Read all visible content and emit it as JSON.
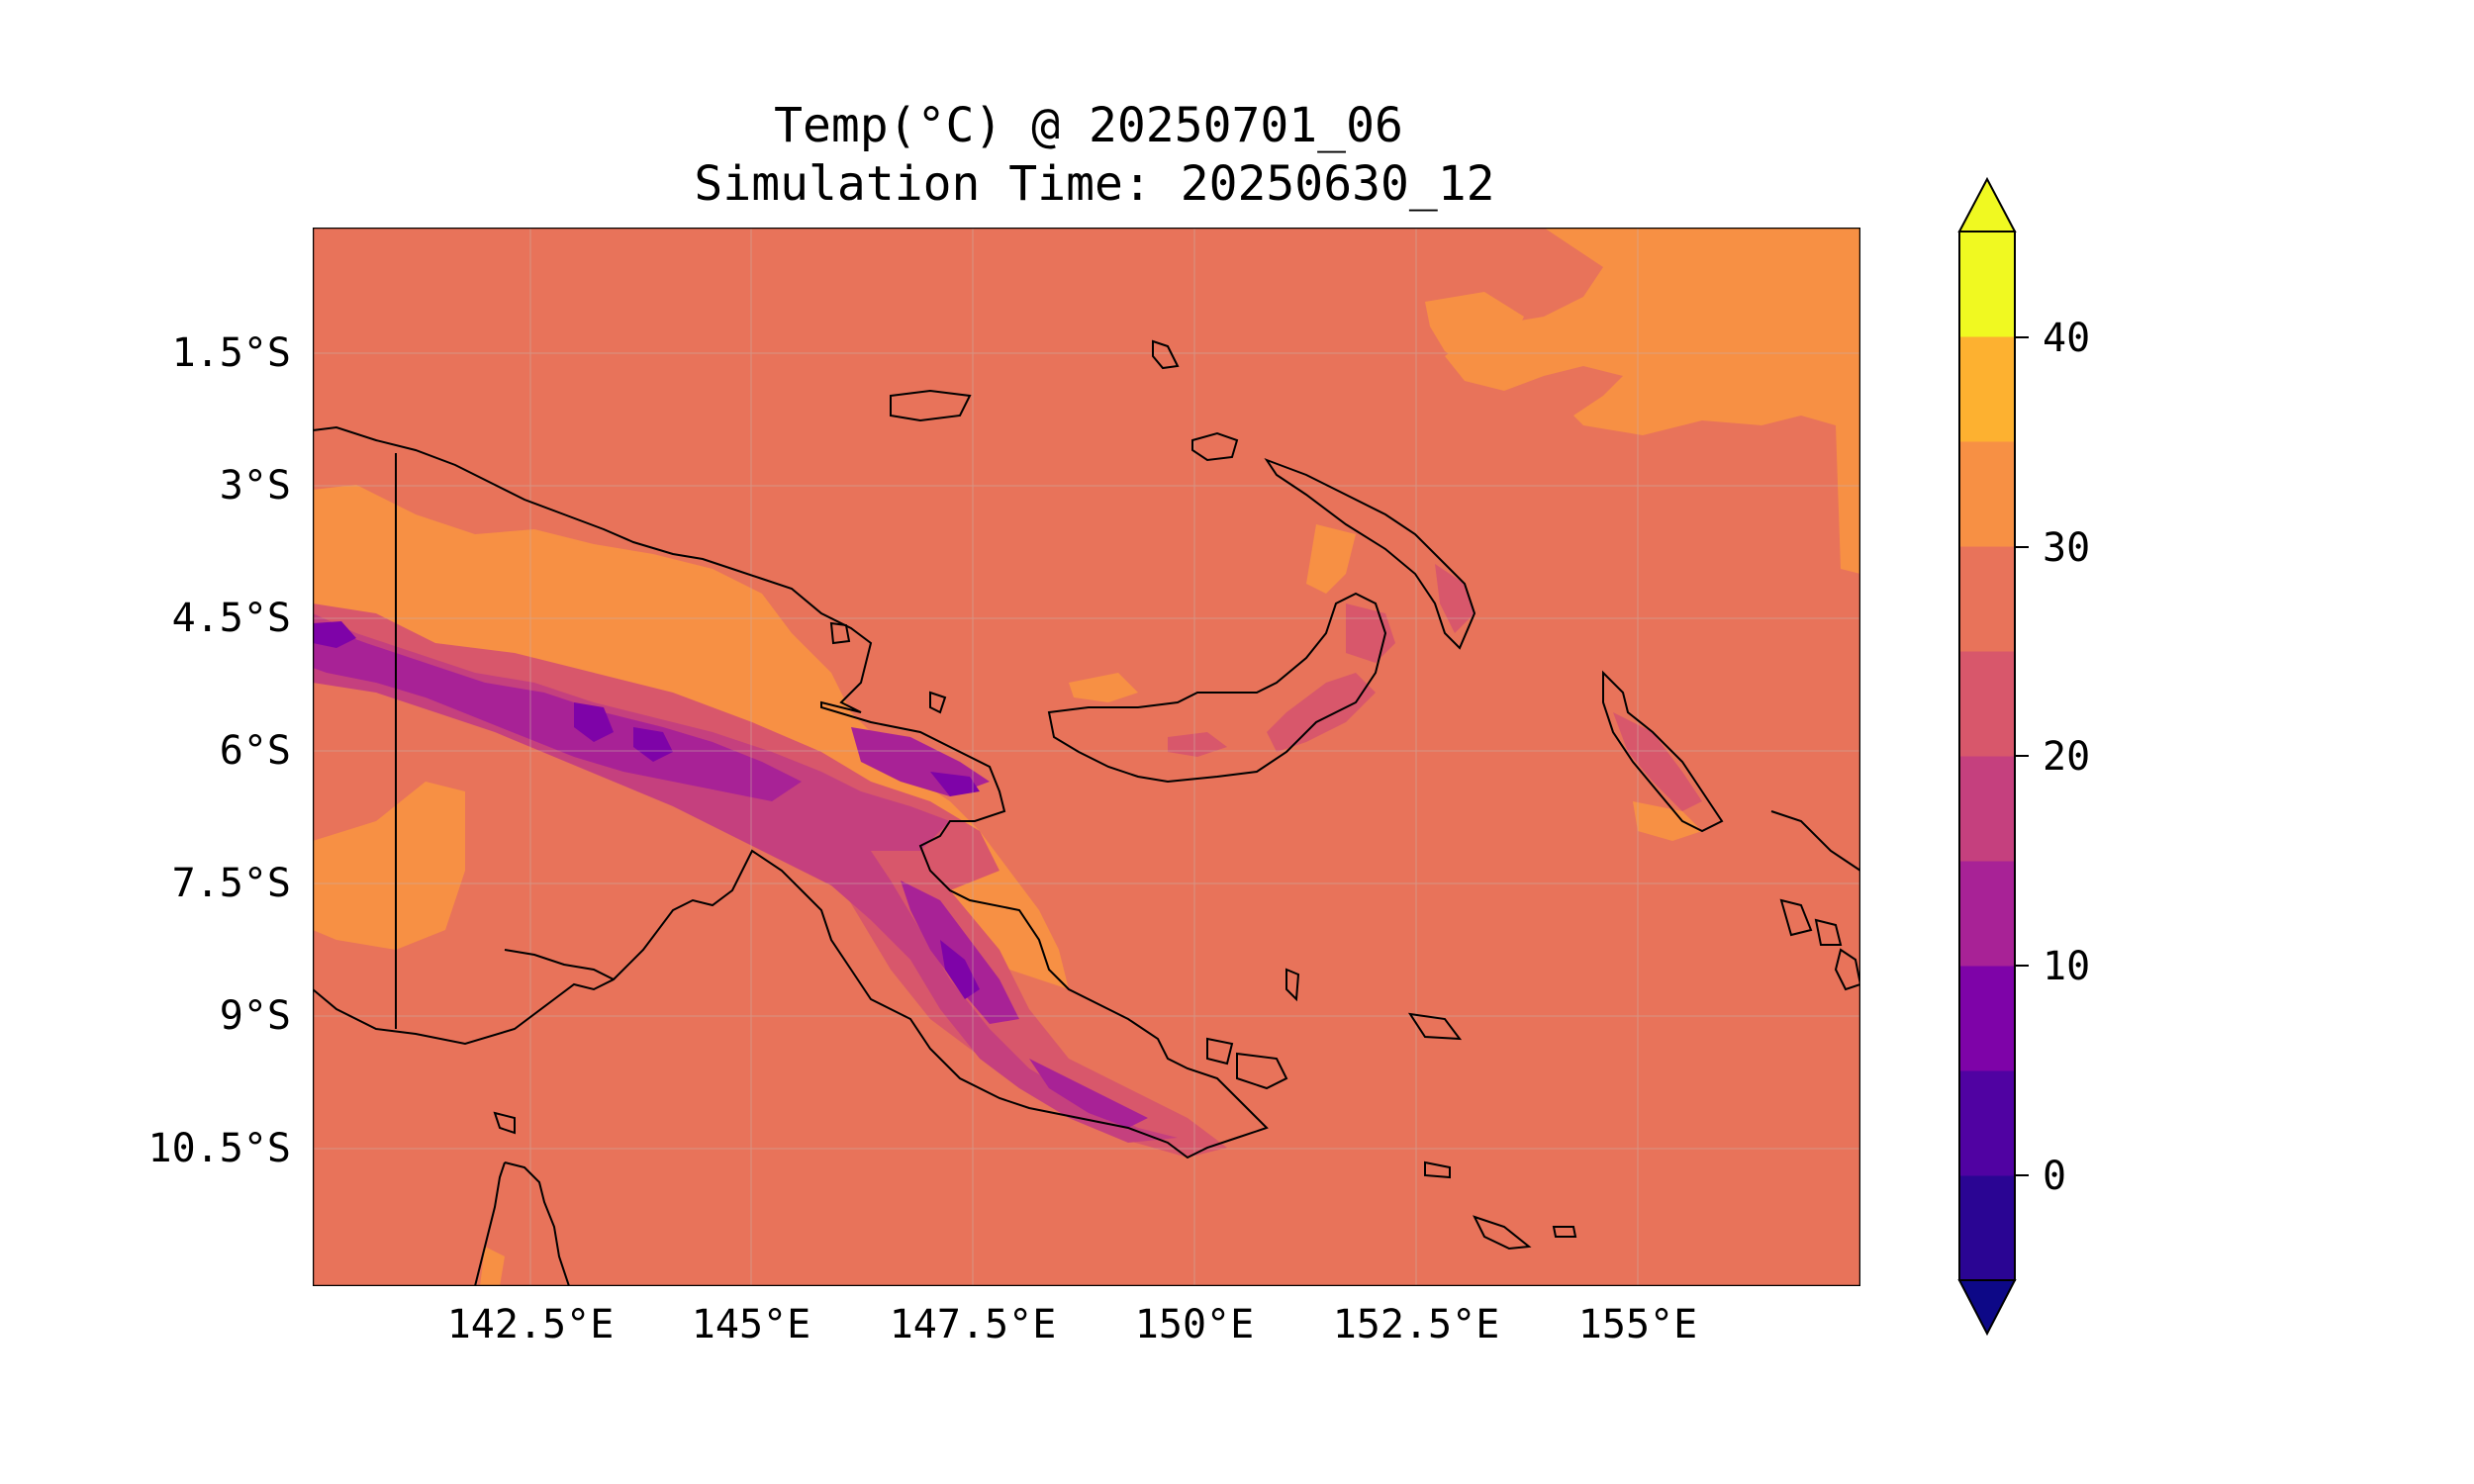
{
  "title": {
    "line1": "Temp(°C) @ 20250701_06",
    "line2": "Simulation Time: 20250630_12"
  },
  "axes": {
    "x_ticks": [
      "142.5°E",
      "145°E",
      "147.5°E",
      "150°E",
      "152.5°E",
      "155°E"
    ],
    "y_ticks": [
      "1.5°S",
      "3°S",
      "4.5°S",
      "6°S",
      "7.5°S",
      "9°S",
      "10.5°S"
    ],
    "lon_range": [
      140.0,
      157.5
    ],
    "lat_range": [
      -12.0,
      0.0
    ],
    "grid": true
  },
  "colorbar": {
    "ticks": [
      "40",
      "30",
      "20",
      "10",
      "0"
    ],
    "levels": [
      -5,
      0,
      5,
      10,
      15,
      20,
      25,
      30,
      35,
      40,
      45
    ],
    "colors": [
      "#2a0593",
      "#5002a2",
      "#7e03a8",
      "#a82296",
      "#c5407e",
      "#d8576b",
      "#e8735a",
      "#f79044",
      "#fdb130",
      "#f0f921"
    ],
    "under_color": "#0d0887",
    "over_color": "#f0f921",
    "extend": "both"
  },
  "map_colors": {
    "background": "#e8735a",
    "warm": "#f79044",
    "cool": "#d8576b",
    "colder": "#c5407e",
    "cold": "#a82296",
    "coldest": "#7e03a8",
    "coast": "#000000",
    "grid": "#c8b0a8"
  }
}
